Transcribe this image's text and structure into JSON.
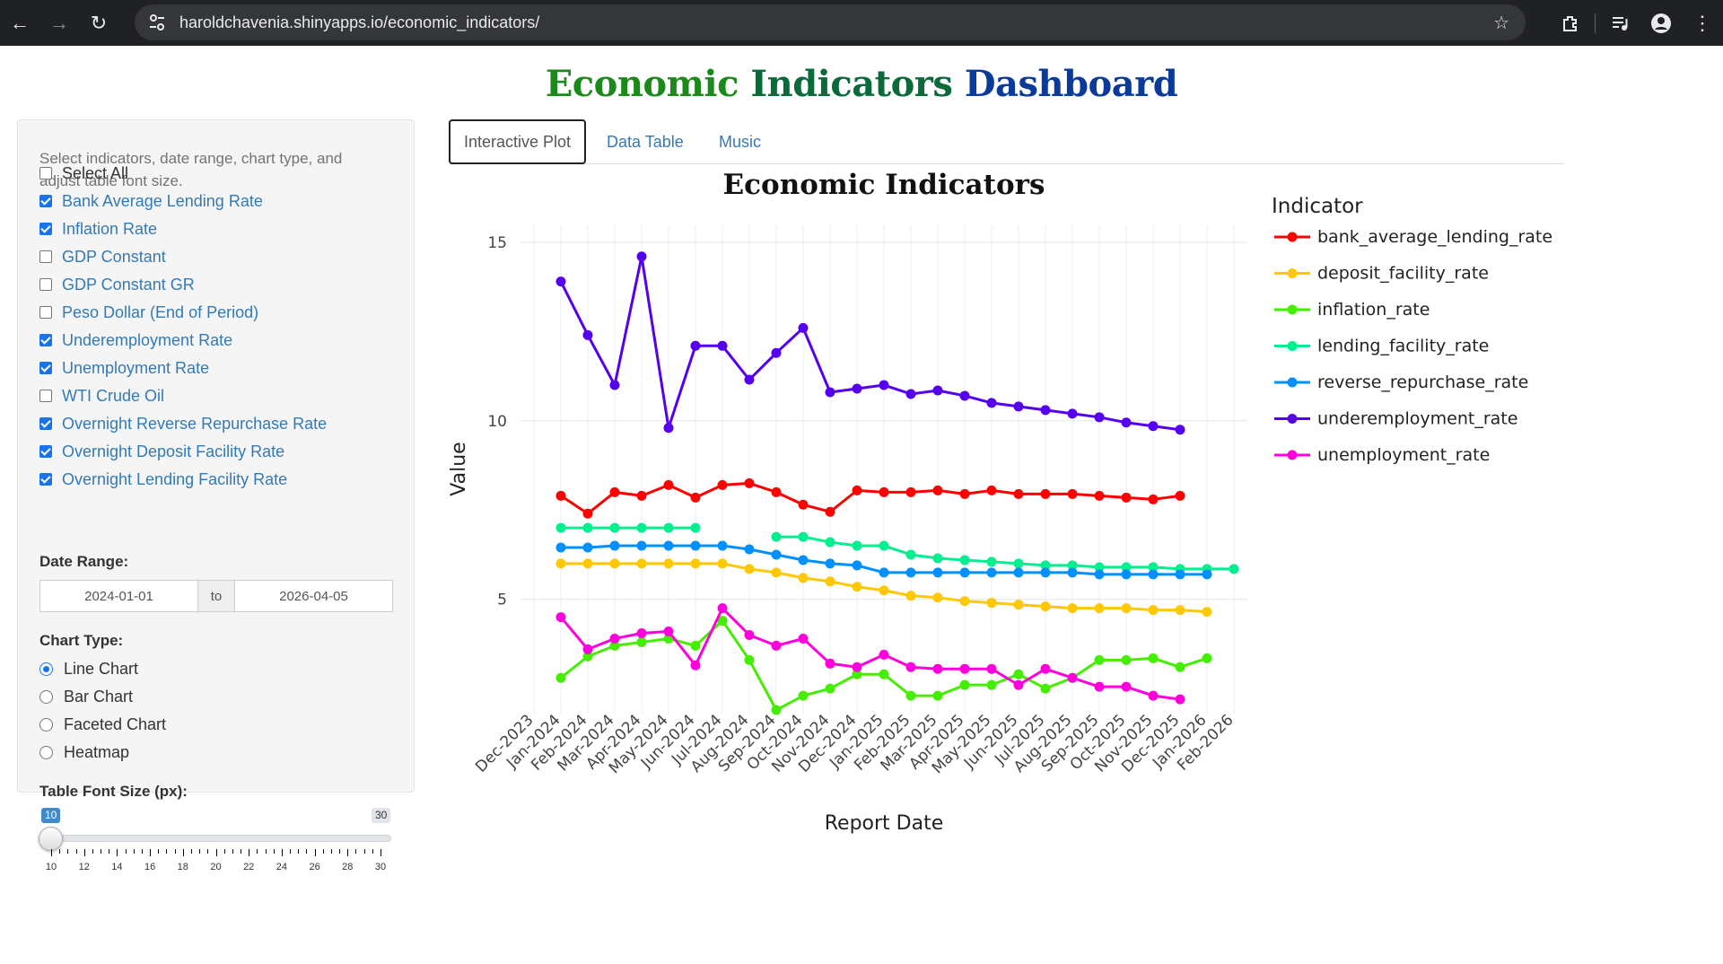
{
  "browser": {
    "url": "haroldchavenia.shinyapps.io/economic_indicators/"
  },
  "page": {
    "title_part1": "Economic",
    "title_part2": "Indicators",
    "title_part3": "Dashboard"
  },
  "sidebar": {
    "help_text": "Select indicators, date range, chart type, and adjust table font size.",
    "checkboxes": [
      {
        "label": "Select All",
        "checked": false
      },
      {
        "label": "Bank Average Lending Rate",
        "checked": true
      },
      {
        "label": "Inflation Rate",
        "checked": true
      },
      {
        "label": "GDP Constant",
        "checked": false
      },
      {
        "label": "GDP Constant GR",
        "checked": false
      },
      {
        "label": "Peso Dollar (End of Period)",
        "checked": false
      },
      {
        "label": "Underemployment Rate",
        "checked": true
      },
      {
        "label": "Unemployment Rate",
        "checked": true
      },
      {
        "label": "WTI Crude Oil",
        "checked": false
      },
      {
        "label": "Overnight Reverse Repurchase Rate",
        "checked": true
      },
      {
        "label": "Overnight Deposit Facility Rate",
        "checked": true
      },
      {
        "label": "Overnight Lending Facility Rate",
        "checked": true
      }
    ],
    "date_range": {
      "label": "Date Range:",
      "start": "2024-01-01",
      "separator": "to",
      "end": "2026-04-05"
    },
    "chart_type": {
      "label": "Chart Type:",
      "options": [
        {
          "label": "Line Chart",
          "selected": true
        },
        {
          "label": "Bar Chart",
          "selected": false
        },
        {
          "label": "Faceted Chart",
          "selected": false
        },
        {
          "label": "Heatmap",
          "selected": false
        }
      ]
    },
    "font_size": {
      "label": "Table Font Size (px):",
      "value": "10",
      "min": "10",
      "max": "30",
      "ticks": [
        "10",
        "12",
        "14",
        "16",
        "18",
        "20",
        "22",
        "24",
        "26",
        "28",
        "30"
      ]
    }
  },
  "tabs": [
    {
      "label": "Interactive Plot",
      "active": true
    },
    {
      "label": "Data Table",
      "active": false
    },
    {
      "label": "Music",
      "active": false
    }
  ],
  "chart_data": {
    "type": "line",
    "title": "Economic Indicators",
    "xlabel": "Report Date",
    "ylabel": "Value",
    "ylim": [
      1.8,
      15.5
    ],
    "yticks": [
      5,
      10,
      15
    ],
    "xticks": [
      "Dec-2023",
      "Jan-2024",
      "Feb-2024",
      "Mar-2024",
      "Apr-2024",
      "May-2024",
      "Jun-2024",
      "Jul-2024",
      "Aug-2024",
      "Sep-2024",
      "Oct-2024",
      "Nov-2024",
      "Dec-2024",
      "Jan-2025",
      "Feb-2025",
      "Mar-2025",
      "Apr-2025",
      "May-2025",
      "Jun-2025",
      "Jul-2025",
      "Aug-2025",
      "Sep-2025",
      "Oct-2025",
      "Nov-2025",
      "Dec-2025",
      "Jan-2026",
      "Feb-2026"
    ],
    "legend_title": "Indicator",
    "legend_position": "right",
    "grid": true,
    "series": [
      {
        "name": "bank_average_lending_rate",
        "color": "#ff0000",
        "start": 1,
        "values": [
          7.9,
          7.4,
          8.0,
          7.9,
          8.2,
          7.85,
          8.2,
          8.25,
          8.0,
          7.65,
          7.45,
          8.05,
          8.0,
          8.0,
          8.05,
          7.95,
          8.05,
          7.95,
          7.95,
          7.95,
          7.9,
          7.85,
          7.8,
          7.9
        ]
      },
      {
        "name": "deposit_facility_rate",
        "color": "#ffc800",
        "start": 1,
        "values": [
          6.0,
          6.0,
          6.0,
          6.0,
          6.0,
          6.0,
          6.0,
          5.85,
          5.75,
          5.6,
          5.5,
          5.35,
          5.25,
          5.1,
          5.05,
          4.95,
          4.9,
          4.85,
          4.8,
          4.75,
          4.75,
          4.75,
          4.7,
          4.7,
          4.65
        ]
      },
      {
        "name": "inflation_rate",
        "color": "#44ee00",
        "start": 1,
        "values": [
          2.8,
          3.4,
          3.7,
          3.8,
          3.9,
          3.7,
          4.4,
          3.3,
          1.9,
          2.3,
          2.5,
          2.9,
          2.9,
          2.3,
          2.3,
          2.6,
          2.6,
          2.9,
          2.5,
          2.8,
          3.3,
          3.3,
          3.35,
          3.1,
          3.35
        ]
      },
      {
        "name": "lending_facility_rate",
        "color": "#00f090",
        "start": 1,
        "values": [
          7.0,
          7.0,
          7.0,
          7.0,
          7.0,
          7.0,
          null,
          null,
          6.75,
          6.75,
          6.6,
          6.5,
          6.5,
          6.25,
          6.15,
          6.1,
          6.05,
          6.0,
          5.95,
          5.95,
          5.9,
          5.9,
          5.9,
          5.85,
          5.85,
          5.85
        ]
      },
      {
        "name": "reverse_repurchase_rate",
        "color": "#0090ff",
        "start": 1,
        "values": [
          6.45,
          6.45,
          6.5,
          6.5,
          6.5,
          6.5,
          6.5,
          6.4,
          6.25,
          6.1,
          6.0,
          5.95,
          5.75,
          5.75,
          5.75,
          5.75,
          5.75,
          5.75,
          5.75,
          5.75,
          5.7,
          5.7,
          5.7,
          5.7,
          5.7
        ]
      },
      {
        "name": "underemployment_rate",
        "color": "#5500ee",
        "start": 1,
        "values": [
          13.9,
          12.4,
          11.0,
          14.6,
          9.8,
          12.1,
          12.1,
          11.15,
          11.9,
          12.6,
          10.8,
          10.9,
          11.0,
          10.75,
          10.85,
          10.7,
          10.5,
          10.4,
          10.3,
          10.2,
          10.1,
          9.95,
          9.85,
          9.75
        ]
      },
      {
        "name": "unemployment_rate",
        "color": "#ff00dd",
        "start": 1,
        "values": [
          4.5,
          3.6,
          3.9,
          4.05,
          4.1,
          3.15,
          4.75,
          4.0,
          3.7,
          3.9,
          3.2,
          3.1,
          3.45,
          3.1,
          3.05,
          3.05,
          3.05,
          2.6,
          3.05,
          2.8,
          2.55,
          2.55,
          2.3,
          2.2
        ]
      }
    ]
  }
}
